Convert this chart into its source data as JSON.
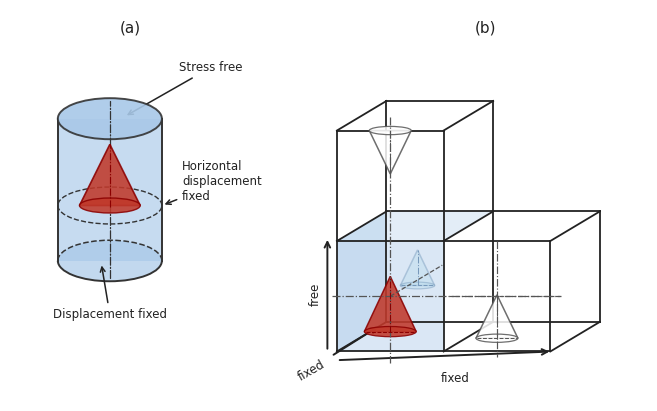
{
  "title_a": "(a)",
  "title_b": "(b)",
  "cylinder_color": "#a8c8e8",
  "cylinder_edge_color": "#333333",
  "cone_fill_color": "#c0392b",
  "cone_edge_color": "#8b0000",
  "cone_fill_alpha": 0.85,
  "box_color": "#a8c8e8",
  "box_edge_color": "#222222",
  "ghost_cone_edge": "#555555",
  "ghost_cone_fill": "#ffffff",
  "depth_cone_edge": "#7799bb",
  "depth_cone_fill": "#bbddee",
  "dash_color": "#555555",
  "dashdot_color": "#555555",
  "arrow_color": "#222222",
  "label_stress_free": "Stress free",
  "label_horiz": "Horizontal\ndisplacement\nfixed",
  "label_disp_fixed": "Displacement fixed",
  "label_free": "free",
  "label_fixed_diag": "fixed",
  "label_fixed_bottom": "fixed",
  "text_color": "#222222",
  "font_size": 8.5
}
